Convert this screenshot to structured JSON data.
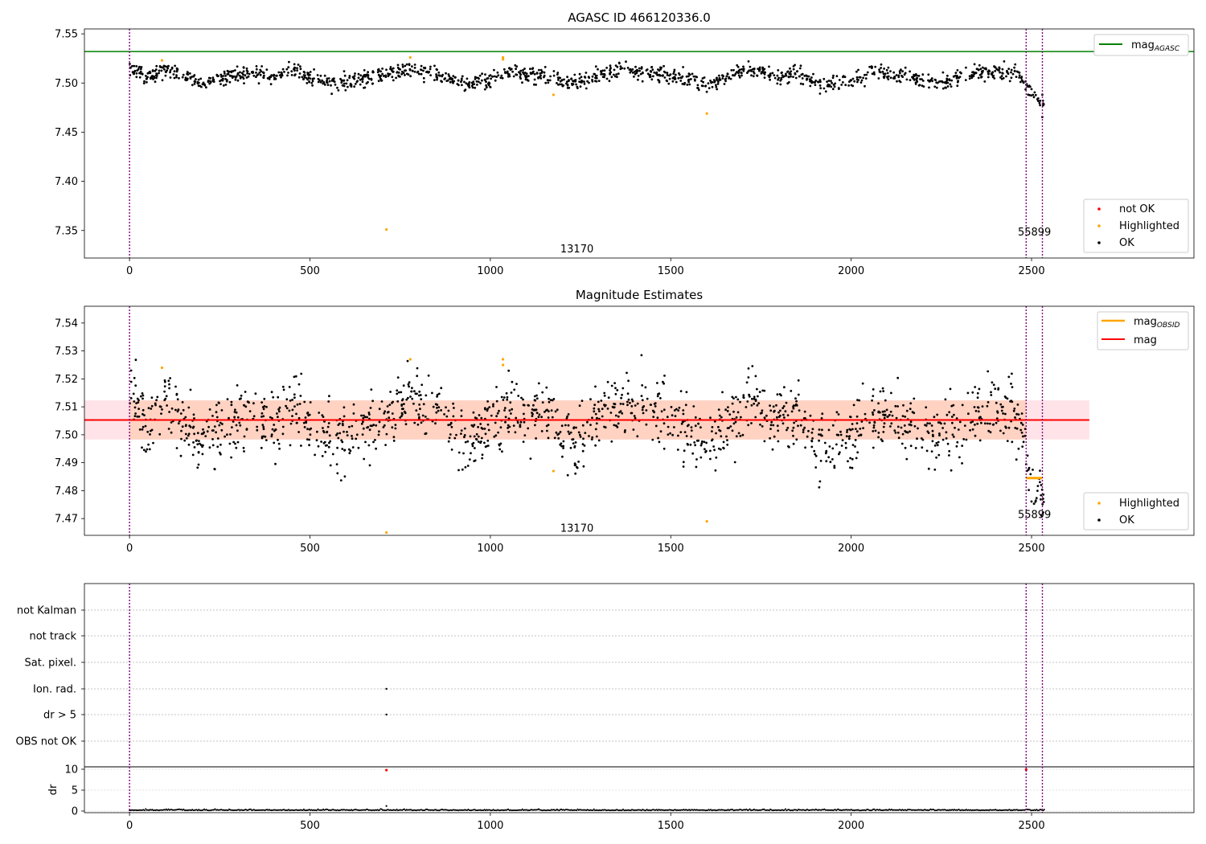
{
  "figure": {
    "background": "#ffffff"
  },
  "colors": {
    "ok": "#000000",
    "highlighted": "#ffa500",
    "not_ok": "#ff0000",
    "agasc_line": "#008000",
    "mag_line": "#ff0000",
    "obsid_line": "#ffa500",
    "obsid_vline": "#800080",
    "band": "#ff000022",
    "band_inner": "#ffa50044"
  },
  "chart_data": [
    {
      "type": "scatter",
      "title": "AGASC ID 466120336.0",
      "xlim": [
        -125,
        2950
      ],
      "ylim": [
        7.322,
        7.555
      ],
      "xticks": [
        0,
        500,
        1000,
        1500,
        2000,
        2500
      ],
      "yticks": [
        7.35,
        7.4,
        7.45,
        7.5,
        7.55
      ],
      "ytick_labels": [
        "7.35",
        "7.40",
        "7.45",
        "7.50",
        "7.55"
      ],
      "hline": {
        "name": "mag_AGASC",
        "y": 7.532,
        "color": "#008000"
      },
      "obsid_boundaries": [
        0,
        2485,
        2530
      ],
      "obsid_labels": [
        {
          "x": 1240,
          "y": 7.332,
          "text": "13170"
        },
        {
          "x": 2508,
          "y": 7.349,
          "text": "55899"
        }
      ],
      "ok_profile": {
        "x": [
          0,
          50,
          100,
          150,
          200,
          250,
          300,
          350,
          400,
          450,
          500,
          550,
          600,
          650,
          700,
          750,
          800,
          850,
          900,
          950,
          1000,
          1050,
          1100,
          1150,
          1200,
          1250,
          1300,
          1350,
          1400,
          1450,
          1500,
          1550,
          1600,
          1650,
          1700,
          1750,
          1800,
          1850,
          1900,
          1950,
          2000,
          2050,
          2100,
          2150,
          2200,
          2250,
          2300,
          2350,
          2400,
          2450,
          2480,
          2490,
          2530
        ],
        "y": [
          7.517,
          7.506,
          7.514,
          7.508,
          7.5,
          7.503,
          7.509,
          7.51,
          7.505,
          7.515,
          7.505,
          7.501,
          7.5,
          7.505,
          7.508,
          7.512,
          7.512,
          7.508,
          7.502,
          7.5,
          7.503,
          7.512,
          7.508,
          7.51,
          7.5,
          7.5,
          7.508,
          7.512,
          7.512,
          7.51,
          7.508,
          7.504,
          7.499,
          7.504,
          7.512,
          7.512,
          7.508,
          7.51,
          7.5,
          7.498,
          7.502,
          7.51,
          7.51,
          7.506,
          7.502,
          7.5,
          7.504,
          7.51,
          7.512,
          7.51,
          7.502,
          7.49,
          7.48
        ],
        "spread": 0.004,
        "count": 1400
      },
      "highlighted": [
        {
          "x": 90,
          "y": 7.523
        },
        {
          "x": 712,
          "y": 7.351
        },
        {
          "x": 778,
          "y": 7.526
        },
        {
          "x": 1035,
          "y": 7.526
        },
        {
          "x": 1035,
          "y": 7.524
        },
        {
          "x": 1175,
          "y": 7.488
        },
        {
          "x": 1600,
          "y": 7.469
        }
      ],
      "not_ok": [],
      "legend_line": [
        {
          "label": "mag",
          "sub": "AGASC",
          "color": "#008000"
        }
      ],
      "legend_points": [
        {
          "label": "not OK",
          "color": "#ff0000"
        },
        {
          "label": "Highlighted",
          "color": "#ffa500"
        },
        {
          "label": "OK",
          "color": "#000000"
        }
      ]
    },
    {
      "type": "scatter",
      "title": "Magnitude Estimates",
      "xlim": [
        -125,
        2950
      ],
      "ylim": [
        7.464,
        7.546
      ],
      "xticks": [
        0,
        500,
        1000,
        1500,
        2000,
        2500
      ],
      "yticks": [
        7.47,
        7.48,
        7.49,
        7.5,
        7.51,
        7.52,
        7.53,
        7.54
      ],
      "ytick_labels": [
        "7.47",
        "7.48",
        "7.49",
        "7.50",
        "7.51",
        "7.52",
        "7.53",
        "7.54"
      ],
      "mag": 7.5053,
      "band": [
        7.4983,
        7.5123
      ],
      "band_x": [
        -125,
        2660
      ],
      "obsid_mag": [
        {
          "x0": 2485,
          "x1": 2530,
          "y": 7.4845
        }
      ],
      "obsid_boundaries": [
        0,
        2485,
        2530
      ],
      "obsid_labels": [
        {
          "x": 1240,
          "y": 7.4667,
          "text": "13170"
        },
        {
          "x": 2508,
          "y": 7.4716,
          "text": "55899"
        }
      ],
      "highlighted": [
        {
          "x": 90,
          "y": 7.524
        },
        {
          "x": 712,
          "y": 7.465
        },
        {
          "x": 778,
          "y": 7.527
        },
        {
          "x": 1035,
          "y": 7.527
        },
        {
          "x": 1035,
          "y": 7.525
        },
        {
          "x": 1175,
          "y": 7.487
        },
        {
          "x": 1600,
          "y": 7.469
        }
      ],
      "legend_line": [
        {
          "label": "mag",
          "sub": "OBSID",
          "color": "#ffa500"
        },
        {
          "label": "mag",
          "sub": "",
          "color": "#ff0000"
        }
      ],
      "legend_points": [
        {
          "label": "Highlighted",
          "color": "#ffa500"
        },
        {
          "label": "OK",
          "color": "#000000"
        }
      ]
    },
    {
      "type": "scatter",
      "title": "",
      "flags": [
        "not Kalman",
        "not track",
        "Sat. pixel.",
        "Ion. rad.",
        "dr > 5",
        "OBS not OK"
      ],
      "flag_points": [
        {
          "flag": "not Kalman",
          "x": 2485
        },
        {
          "flag": "Ion. rad.",
          "x": 712
        },
        {
          "flag": "dr > 5",
          "x": 712
        }
      ],
      "dr": {
        "ylabel": "dr",
        "yticks": [
          0,
          5,
          10
        ],
        "ylim": [
          -0.5,
          10.5
        ],
        "high": [
          {
            "x": 712,
            "y": 9.8
          },
          {
            "x": 2485,
            "y": 9.9
          }
        ],
        "mid": [
          {
            "x": 712,
            "y": 1.2
          }
        ]
      },
      "xlim": [
        -125,
        2950
      ],
      "xticks": [
        0,
        500,
        1000,
        1500,
        2000,
        2500
      ],
      "obsid_boundaries": [
        0,
        2485,
        2530
      ]
    }
  ],
  "layout_text": {
    "xtick_labels": [
      "0",
      "500",
      "1000",
      "1500",
      "2000",
      "2500"
    ],
    "dr_tick_labels": [
      "0",
      "5",
      "10"
    ]
  }
}
